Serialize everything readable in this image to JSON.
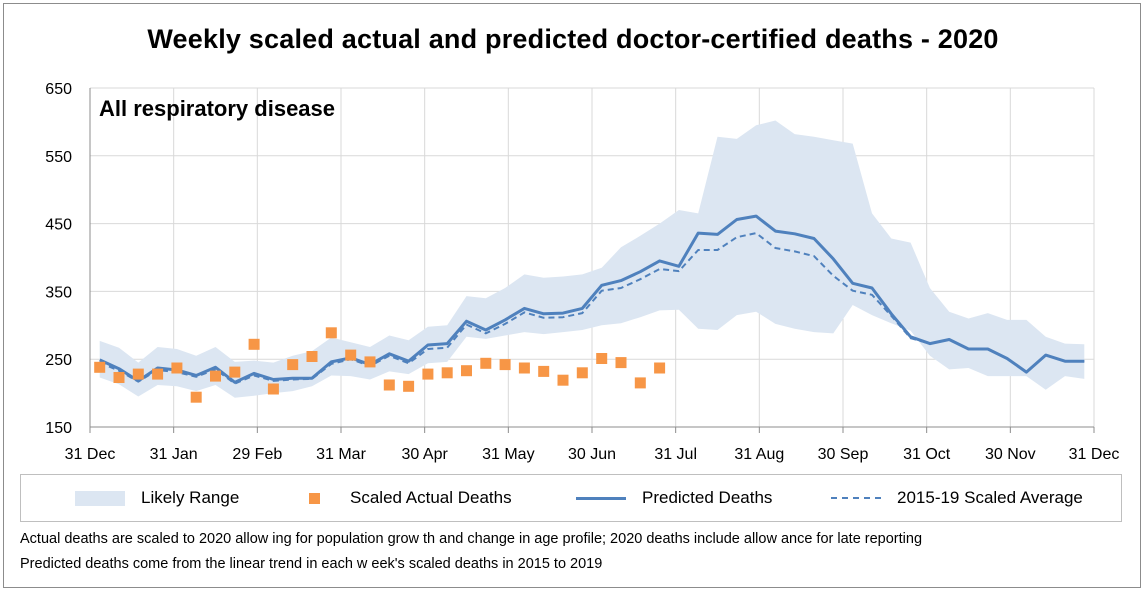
{
  "title": "Weekly scaled actual and predicted doctor-certified deaths - 2020",
  "chart_data": {
    "type": "line",
    "panel_label": "All respiratory disease",
    "x_ticks": [
      "31 Dec",
      "31 Jan",
      "29 Feb",
      "31 Mar",
      "30 Apr",
      "31 May",
      "30 Jun",
      "31 Jul",
      "31 Aug",
      "30 Sep",
      "31 Oct",
      "30 Nov",
      "31 Dec"
    ],
    "y_ticks": [
      "650",
      "550",
      "450",
      "350",
      "250",
      "150"
    ],
    "ylim": [
      150,
      650
    ],
    "grid": true,
    "legend_position": "bottom",
    "weeks": [
      1,
      2,
      3,
      4,
      5,
      6,
      7,
      8,
      9,
      10,
      11,
      12,
      13,
      14,
      15,
      16,
      17,
      18,
      19,
      20,
      21,
      22,
      23,
      24,
      25,
      26,
      27,
      28,
      29,
      30,
      31,
      32,
      33,
      34,
      35,
      36,
      37,
      38,
      39,
      40,
      41,
      42,
      43,
      44,
      45,
      46,
      47,
      48,
      49,
      50,
      51,
      52
    ],
    "series": [
      {
        "name": "Likely Range",
        "style": "band",
        "color": "#dce6f2",
        "upper": [
          277,
          267,
          245,
          268,
          265,
          255,
          268,
          246,
          248,
          245,
          255,
          262,
          282,
          275,
          268,
          285,
          278,
          298,
          300,
          343,
          340,
          355,
          375,
          370,
          372,
          375,
          385,
          415,
          432,
          450,
          470,
          465,
          578,
          575,
          595,
          602,
          582,
          578,
          573,
          568,
          465,
          428,
          422,
          355,
          320,
          310,
          318,
          308,
          308,
          283,
          273,
          272
        ],
        "lower": [
          223,
          213,
          195,
          212,
          210,
          203,
          212,
          193,
          196,
          200,
          203,
          210,
          226,
          225,
          220,
          232,
          228,
          244,
          246,
          283,
          280,
          285,
          290,
          287,
          290,
          293,
          300,
          303,
          312,
          322,
          323,
          295,
          293,
          315,
          320,
          302,
          295,
          290,
          288,
          330,
          315,
          303,
          292,
          255,
          235,
          237,
          225,
          225,
          225,
          205,
          225,
          221
        ]
      },
      {
        "name": "Scaled Actual Deaths",
        "style": "marker",
        "color": "#f79646",
        "values": [
          238,
          223,
          228,
          228,
          237,
          194,
          225,
          231,
          272,
          206,
          242,
          254,
          289,
          256,
          246,
          212,
          210,
          228,
          230,
          233,
          244,
          242,
          237,
          232,
          219,
          230,
          251,
          245,
          215,
          237
        ]
      },
      {
        "name": "Predicted Deaths",
        "style": "solid",
        "color": "#4f81bd",
        "values": [
          249,
          236,
          218,
          237,
          234,
          226,
          238,
          216,
          229,
          220,
          222,
          222,
          246,
          252,
          242,
          258,
          247,
          271,
          273,
          306,
          293,
          308,
          325,
          317,
          318,
          325,
          359,
          366,
          379,
          395,
          387,
          436,
          434,
          456,
          461,
          439,
          435,
          428,
          398,
          362,
          355,
          317,
          283,
          273,
          279,
          265,
          265,
          251,
          231,
          256,
          247,
          247
        ]
      },
      {
        "name": "2015-19 Scaled Average",
        "style": "dashed",
        "color": "#4f81bd",
        "values": [
          245,
          233,
          217,
          234,
          231,
          224,
          235,
          214,
          226,
          218,
          220,
          221,
          243,
          250,
          240,
          255,
          244,
          265,
          267,
          301,
          288,
          302,
          319,
          311,
          312,
          318,
          351,
          355,
          368,
          383,
          380,
          411,
          411,
          430,
          436,
          414,
          409,
          402,
          373,
          351,
          345,
          314,
          281,
          273,
          279,
          265,
          265,
          251,
          231,
          256,
          247,
          247
        ]
      }
    ]
  },
  "legend": {
    "range": "Likely Range",
    "actual": "Scaled Actual Deaths",
    "predicted": "Predicted Deaths",
    "average": "2015-19 Scaled Average"
  },
  "footnotes": [
    "Actual deaths are scaled to 2020 allow ing for population grow th and change in age profile; 2020 deaths include allow ance for late reporting",
    "Predicted deaths come from the linear trend in each w eek's scaled deaths in 2015 to 2019"
  ]
}
